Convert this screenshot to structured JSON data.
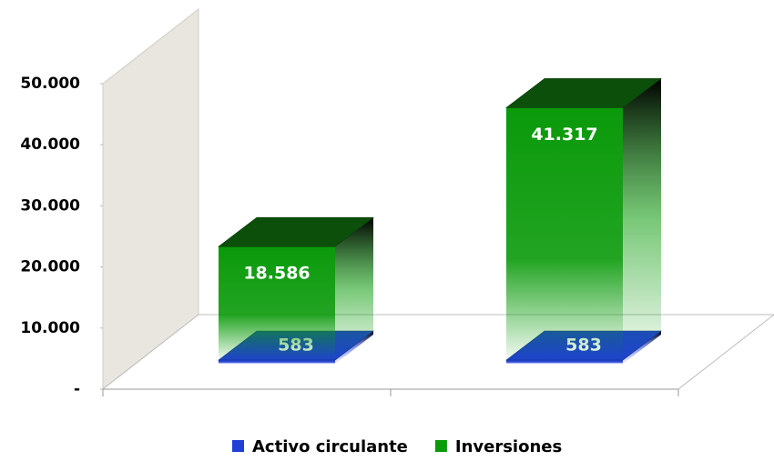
{
  "chart_data": {
    "type": "bar3d_stacked",
    "categories": [
      null,
      null
    ],
    "series": [
      {
        "name": "Activo circulante",
        "color": "#1f3fd6",
        "values": [
          583,
          583
        ],
        "value_labels": [
          "583",
          "583"
        ]
      },
      {
        "name": "Inversiones",
        "color": "#0a9a0a",
        "values": [
          18586,
          41317
        ],
        "value_labels": [
          "18.586",
          "41.317"
        ]
      }
    ],
    "ylim": [
      0,
      50000
    ],
    "yticks": [
      {
        "value": 0,
        "label": "-"
      },
      {
        "value": 10000,
        "label": "10.000"
      },
      {
        "value": 20000,
        "label": "20.000"
      },
      {
        "value": 30000,
        "label": "30.000"
      },
      {
        "value": 40000,
        "label": "40.000"
      },
      {
        "value": 50000,
        "label": "50.000"
      }
    ],
    "legend": "bottom"
  }
}
